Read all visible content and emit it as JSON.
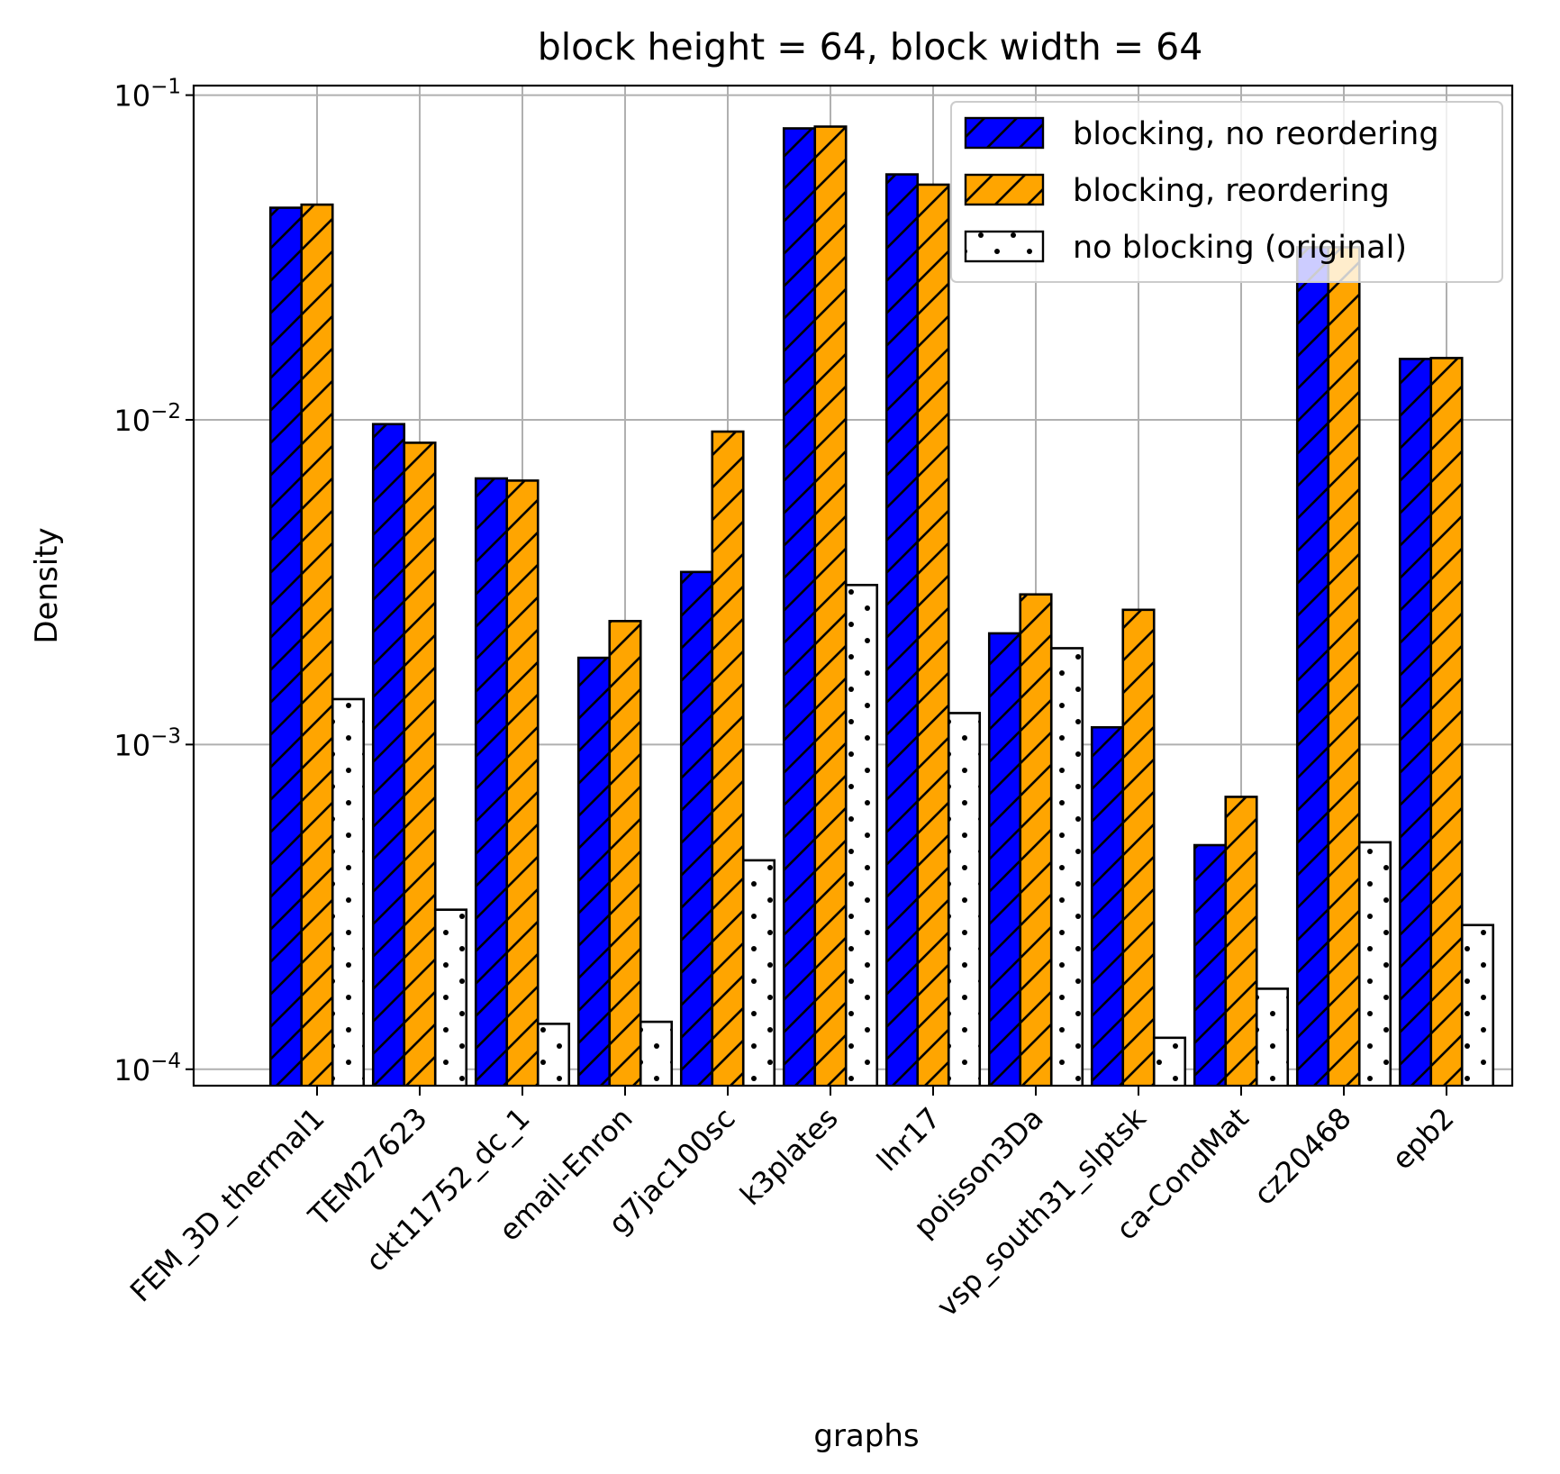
{
  "chart_data": {
    "type": "bar",
    "title": "block height = 64, block width = 64",
    "xlabel": "graphs",
    "ylabel": "Density",
    "yscale": "log",
    "ylim": [
      8.9e-05,
      0.107
    ],
    "yticks": [
      {
        "value": 0.0001,
        "base": "10",
        "exp": "−4"
      },
      {
        "value": 0.001,
        "base": "10",
        "exp": "−3"
      },
      {
        "value": 0.01,
        "base": "10",
        "exp": "−2"
      },
      {
        "value": 0.1,
        "base": "10",
        "exp": "−1"
      }
    ],
    "grid": true,
    "legend_position": "top-right",
    "categories": [
      "FEM_3D_thermal1",
      "TEM27623",
      "ckt11752_dc_1",
      "email-Enron",
      "g7jac100sc",
      "k3plates",
      "lhr17",
      "poisson3Da",
      "vsp_south31_slptsk",
      "ca-CondMat",
      "cz20468",
      "epb2"
    ],
    "series": [
      {
        "name": "blocking, no reordering",
        "color": "#0000ff",
        "hatch": "diagonal",
        "values": [
          0.045,
          0.0097,
          0.0066,
          0.00185,
          0.0034,
          0.079,
          0.057,
          0.0022,
          0.00113,
          0.00049,
          0.034,
          0.0154
        ]
      },
      {
        "name": "blocking, reordering",
        "color": "#ffa500",
        "hatch": "diagonal",
        "values": [
          0.046,
          0.0085,
          0.0065,
          0.0024,
          0.0092,
          0.08,
          0.053,
          0.0029,
          0.0026,
          0.00069,
          0.034,
          0.0155
        ]
      },
      {
        "name": "no blocking (original)",
        "color": "#ffffff",
        "hatch": "dots",
        "values": [
          0.00138,
          0.00031,
          0.000138,
          0.00014,
          0.00044,
          0.0031,
          0.00125,
          0.00198,
          0.000125,
          0.000177,
          0.0005,
          0.000278
        ]
      }
    ]
  }
}
